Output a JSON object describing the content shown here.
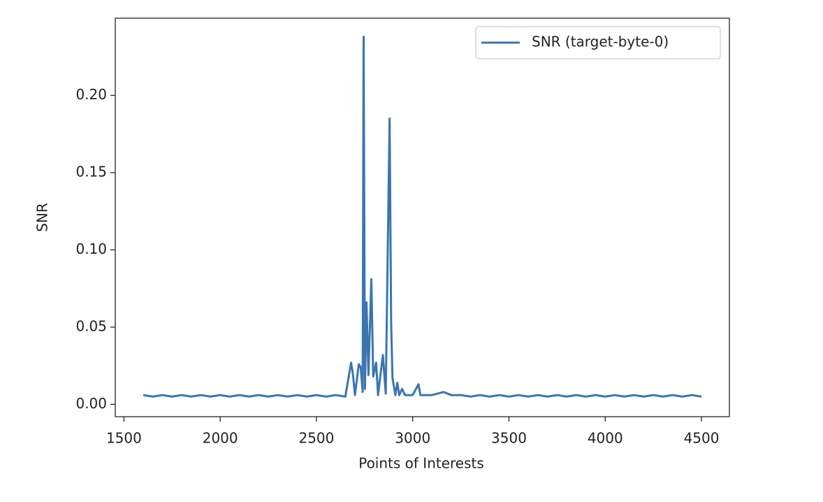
{
  "chart_data": {
    "type": "line",
    "x_label": "Points of Interests",
    "y_label": "SNR",
    "x": [
      1600,
      1650,
      1700,
      1750,
      1800,
      1850,
      1900,
      1950,
      2000,
      2050,
      2100,
      2150,
      2200,
      2250,
      2300,
      2350,
      2400,
      2450,
      2500,
      2550,
      2600,
      2650,
      2680,
      2690,
      2700,
      2720,
      2730,
      2740,
      2745,
      2752,
      2760,
      2770,
      2785,
      2795,
      2810,
      2820,
      2845,
      2860,
      2880,
      2888,
      2895,
      2910,
      2920,
      2930,
      2945,
      2960,
      3000,
      3030,
      3040,
      3100,
      3160,
      3200,
      3250,
      3300,
      3350,
      3400,
      3450,
      3500,
      3550,
      3600,
      3650,
      3700,
      3750,
      3800,
      3850,
      3900,
      3950,
      4000,
      4050,
      4100,
      4150,
      4200,
      4250,
      4300,
      4350,
      4400,
      4450,
      4500
    ],
    "series": [
      {
        "name": "SNR (target-byte-0)",
        "color": "#3a75b0",
        "values": [
          0.006,
          0.005,
          0.006,
          0.005,
          0.006,
          0.005,
          0.006,
          0.005,
          0.006,
          0.005,
          0.006,
          0.005,
          0.006,
          0.005,
          0.006,
          0.005,
          0.006,
          0.005,
          0.006,
          0.005,
          0.006,
          0.005,
          0.027,
          0.019,
          0.006,
          0.026,
          0.024,
          0.008,
          0.238,
          0.01,
          0.066,
          0.019,
          0.081,
          0.018,
          0.027,
          0.006,
          0.032,
          0.007,
          0.185,
          0.053,
          0.017,
          0.006,
          0.014,
          0.006,
          0.01,
          0.006,
          0.006,
          0.013,
          0.006,
          0.006,
          0.008,
          0.006,
          0.006,
          0.005,
          0.006,
          0.005,
          0.006,
          0.005,
          0.006,
          0.005,
          0.006,
          0.005,
          0.006,
          0.005,
          0.006,
          0.005,
          0.006,
          0.005,
          0.006,
          0.005,
          0.006,
          0.005,
          0.006,
          0.005,
          0.006,
          0.005,
          0.006,
          0.005
        ]
      }
    ],
    "xlim": [
      1455,
      4645
    ],
    "xticks": [
      1500,
      2000,
      2500,
      3000,
      3500,
      4000,
      4500
    ],
    "ylim": [
      -0.008,
      0.25
    ],
    "yticks": [
      {
        "value": 0,
        "label": "0.00"
      },
      0.05,
      {
        "value": 0.1,
        "label": "0.10"
      },
      0.15,
      {
        "value": 0.2,
        "label": "0.20"
      }
    ],
    "legend": "upper right"
  }
}
